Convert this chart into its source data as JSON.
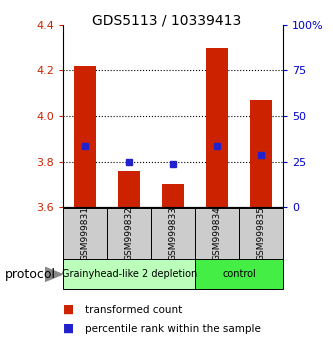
{
  "title": "GDS5113 / 10339413",
  "samples": [
    "GSM999831",
    "GSM999832",
    "GSM999833",
    "GSM999834",
    "GSM999835"
  ],
  "bar_bottoms": [
    3.6,
    3.6,
    3.6,
    3.6,
    3.6
  ],
  "bar_tops": [
    4.22,
    3.76,
    3.7,
    4.3,
    4.07
  ],
  "blue_dot_y": [
    3.87,
    3.8,
    3.79,
    3.87,
    3.83
  ],
  "ylim": [
    3.6,
    4.4
  ],
  "yticks_left": [
    3.6,
    3.8,
    4.0,
    4.2,
    4.4
  ],
  "yticks_right": [
    0,
    25,
    50,
    75,
    100
  ],
  "yticks_right_labels": [
    "0",
    "25",
    "50",
    "75",
    "100%"
  ],
  "dotted_lines": [
    3.8,
    4.0,
    4.2
  ],
  "bar_color": "#cc2200",
  "dot_color": "#2222cc",
  "group_labels": [
    "Grainyhead-like 2 depletion",
    "control"
  ],
  "group_ranges": [
    [
      0,
      3
    ],
    [
      3,
      5
    ]
  ],
  "group_colors": [
    "#bbffbb",
    "#44ee44"
  ],
  "sample_box_color": "#cccccc",
  "protocol_label": "protocol",
  "legend_items": [
    "transformed count",
    "percentile rank within the sample"
  ],
  "bg_color": "#ffffff",
  "left_tick_color": "#cc2200",
  "right_tick_color": "#0000cc",
  "arrow_color": "#888888",
  "title_fontsize": 10,
  "tick_fontsize": 8,
  "sample_fontsize": 6.5,
  "group_fontsize": 7,
  "legend_fontsize": 7.5
}
